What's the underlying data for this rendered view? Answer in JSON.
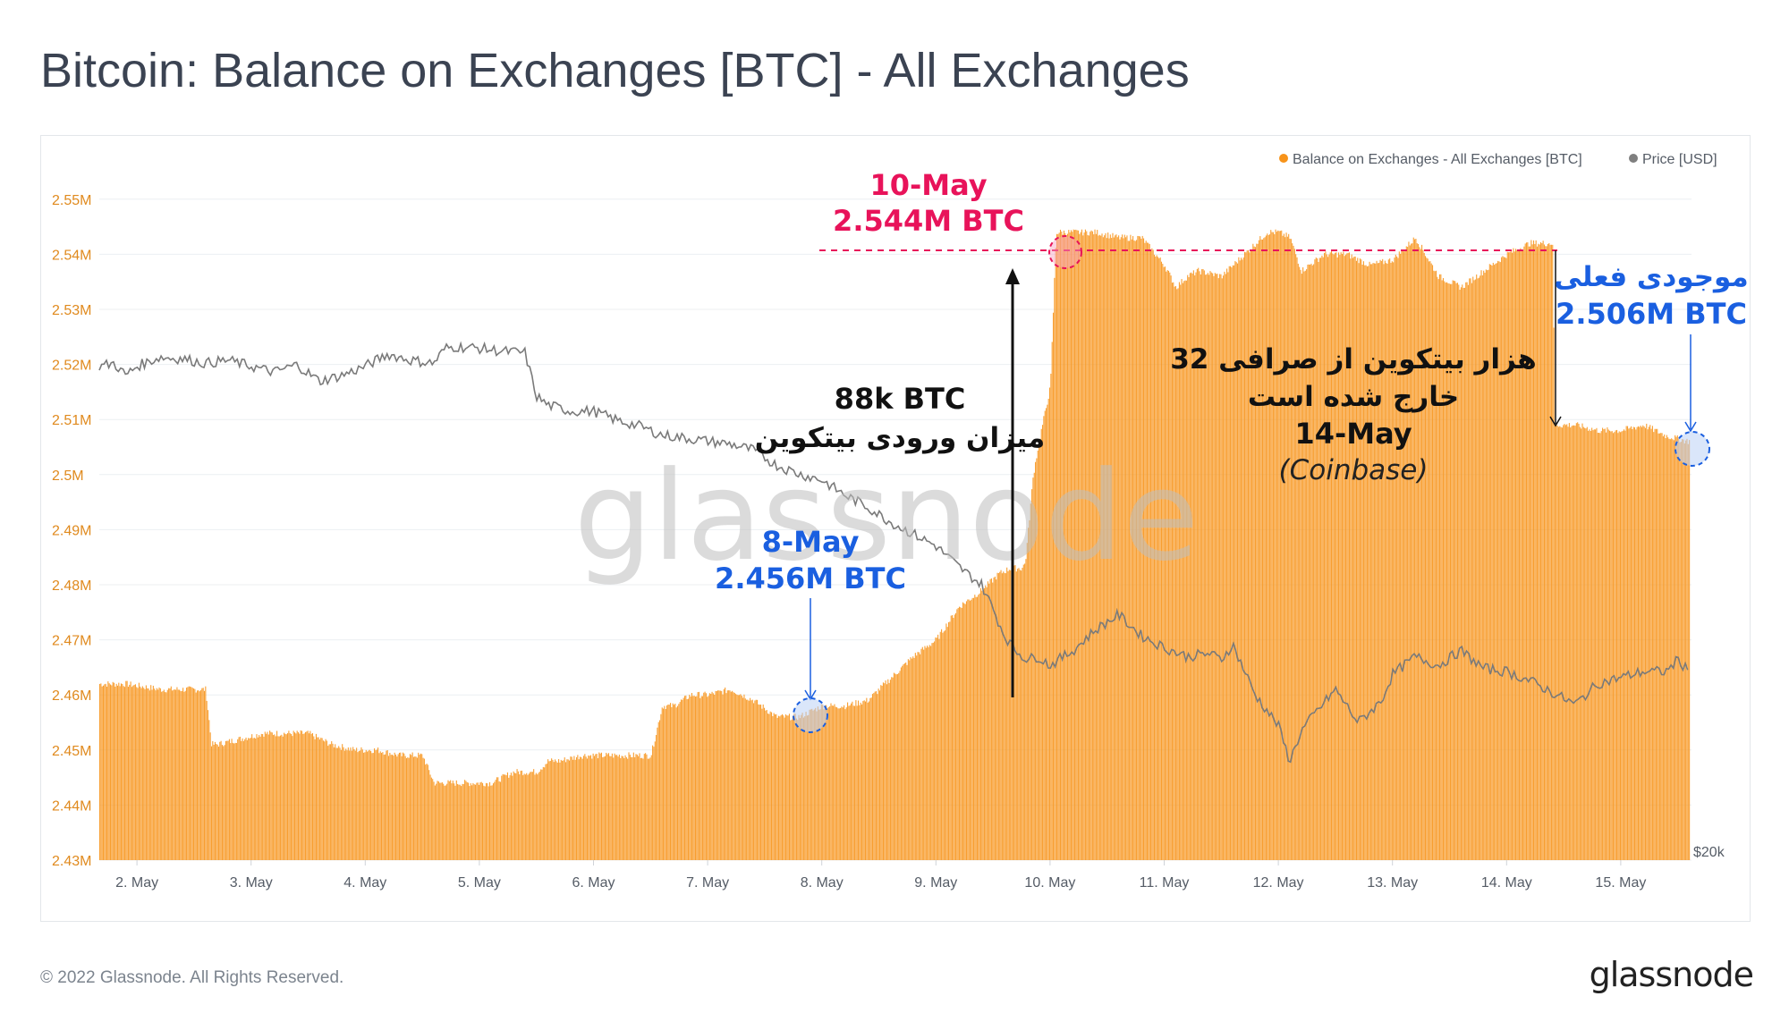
{
  "title": "Bitcoin: Balance on Exchanges [BTC] - All Exchanges",
  "footer": {
    "copyright": "© 2022 Glassnode. All Rights Reserved.",
    "logo": "glassnode"
  },
  "watermark": "glassnode",
  "colors": {
    "balance": "#f7931a",
    "price": "#8a8a8a",
    "red": "#e8135a",
    "blue": "#1a5fe0",
    "black": "#111111"
  },
  "legend": [
    {
      "label": "Balance on Exchanges - All Exchanges [BTC]",
      "color": "#f7931a"
    },
    {
      "label": "Price [USD]",
      "color": "#7f7f7f"
    }
  ],
  "annotations": {
    "may10_date": "10-May",
    "may10_value": "2.544M BTC",
    "may8_date": "8-May",
    "may8_value": "2.456M BTC",
    "inflow_amount": "88k BTC",
    "inflow_desc": "میزان ورودی بیتکوین",
    "outflow_desc1": "32 هزار بیتکوین از صرافی",
    "outflow_desc2": "خارج شده است",
    "outflow_date": "14-May",
    "outflow_source": "(Coinbase)",
    "current_label": "موجودی فعلی",
    "current_value": "2.506M BTC"
  },
  "chart_data": {
    "type": "bar",
    "left_axis": {
      "ylim": [
        2.43,
        2.555
      ],
      "ticks": [
        "2.43M",
        "2.44M",
        "2.45M",
        "2.46M",
        "2.47M",
        "2.48M",
        "2.49M",
        "2.5M",
        "2.51M",
        "2.52M",
        "2.53M",
        "2.54M",
        "2.55M"
      ],
      "tick_values": [
        2.43,
        2.44,
        2.45,
        2.46,
        2.47,
        2.48,
        2.49,
        2.5,
        2.51,
        2.52,
        2.53,
        2.54,
        2.55
      ]
    },
    "right_axis": {
      "ticks": [
        "$20k"
      ]
    },
    "x_ticks": [
      "2. May",
      "3. May",
      "4. May",
      "5. May",
      "6. May",
      "7. May",
      "8. May",
      "9. May",
      "10. May",
      "11. May",
      "12. May",
      "13. May",
      "14. May",
      "15. May"
    ],
    "xlim": [
      1.67,
      15.62
    ],
    "series": [
      {
        "name": "Balance on Exchanges - All Exchanges [BTC]",
        "unit": "M BTC",
        "x": [
          1.67,
          1.9,
          2.2,
          2.4,
          2.6,
          2.65,
          2.7,
          2.9,
          3.1,
          3.3,
          3.5,
          3.6,
          3.7,
          3.9,
          4.1,
          4.3,
          4.5,
          4.6,
          4.7,
          4.9,
          5.1,
          5.3,
          5.5,
          5.6,
          5.7,
          5.9,
          6.1,
          6.3,
          6.5,
          6.6,
          6.7,
          6.85,
          6.9,
          7.0,
          7.2,
          7.4,
          7.6,
          7.8,
          8.0,
          8.2,
          8.4,
          8.6,
          8.8,
          9.0,
          9.2,
          9.4,
          9.55,
          9.65,
          9.75,
          9.78,
          9.85,
          9.9,
          10.0,
          10.05,
          10.2,
          10.4,
          10.6,
          10.8,
          11.0,
          11.1,
          11.2,
          11.3,
          11.5,
          11.7,
          11.9,
          12.0,
          12.1,
          12.2,
          12.4,
          12.6,
          12.8,
          13.0,
          13.2,
          13.4,
          13.6,
          13.8,
          14.0,
          14.2,
          14.4,
          14.42,
          14.6,
          14.8,
          15.0,
          15.2,
          15.4,
          15.6
        ],
        "values": [
          2.462,
          2.462,
          2.461,
          2.461,
          2.461,
          2.451,
          2.451,
          2.452,
          2.453,
          2.453,
          2.453,
          2.452,
          2.451,
          2.45,
          2.45,
          2.449,
          2.449,
          2.444,
          2.444,
          2.444,
          2.444,
          2.446,
          2.446,
          2.448,
          2.448,
          2.449,
          2.449,
          2.449,
          2.449,
          2.458,
          2.458,
          2.46,
          2.46,
          2.46,
          2.461,
          2.459,
          2.456,
          2.456,
          2.458,
          2.458,
          2.459,
          2.463,
          2.467,
          2.47,
          2.476,
          2.479,
          2.482,
          2.483,
          2.483,
          2.484,
          2.5,
          2.506,
          2.516,
          2.544,
          2.544,
          2.544,
          2.543,
          2.543,
          2.538,
          2.534,
          2.536,
          2.537,
          2.536,
          2.54,
          2.544,
          2.544,
          2.543,
          2.537,
          2.54,
          2.54,
          2.538,
          2.539,
          2.543,
          2.536,
          2.534,
          2.537,
          2.54,
          2.542,
          2.542,
          2.509,
          2.509,
          2.508,
          2.508,
          2.509,
          2.507,
          2.506
        ]
      },
      {
        "name": "Price [USD]",
        "unit": "USD",
        "x": [
          1.67,
          1.8,
          1.9,
          2.0,
          2.2,
          2.4,
          2.6,
          2.8,
          3.0,
          3.2,
          3.4,
          3.6,
          3.8,
          4.0,
          4.2,
          4.4,
          4.6,
          4.7,
          4.8,
          5.0,
          5.2,
          5.4,
          5.5,
          5.6,
          5.8,
          6.0,
          6.2,
          6.4,
          6.6,
          6.8,
          7.0,
          7.2,
          7.4,
          7.6,
          7.8,
          8.0,
          8.2,
          8.4,
          8.6,
          8.8,
          9.0,
          9.2,
          9.4,
          9.5,
          9.6,
          9.7,
          9.8,
          9.9,
          10.0,
          10.2,
          10.4,
          10.6,
          10.8,
          11.0,
          11.2,
          11.4,
          11.5,
          11.6,
          11.8,
          12.0,
          12.1,
          12.2,
          12.3,
          12.5,
          12.7,
          12.9,
          13.0,
          13.2,
          13.4,
          13.6,
          13.8,
          14.0,
          14.2,
          14.4,
          14.6,
          14.8,
          15.0,
          15.2,
          15.4,
          15.5,
          15.6
        ],
        "values": [
          39500,
          39600,
          39200,
          39500,
          39800,
          39750,
          39600,
          39700,
          39500,
          39300,
          39550,
          39000,
          39200,
          39500,
          39900,
          39700,
          39600,
          40100,
          40150,
          40100,
          40000,
          39950,
          38500,
          38200,
          38000,
          38000,
          37700,
          37500,
          37200,
          37100,
          37000,
          36900,
          36700,
          36200,
          35900,
          35700,
          35200,
          34800,
          34300,
          33900,
          33500,
          32800,
          32200,
          31400,
          30500,
          30000,
          29700,
          29800,
          29500,
          30000,
          30700,
          31200,
          30500,
          30100,
          29800,
          29900,
          29700,
          30200,
          28500,
          27500,
          26300,
          27300,
          27800,
          28700,
          27600,
          28300,
          29200,
          29800,
          29500,
          30000,
          29400,
          29300,
          29000,
          28600,
          28200,
          28900,
          29100,
          29300,
          29300,
          29700,
          29300
        ]
      }
    ]
  }
}
